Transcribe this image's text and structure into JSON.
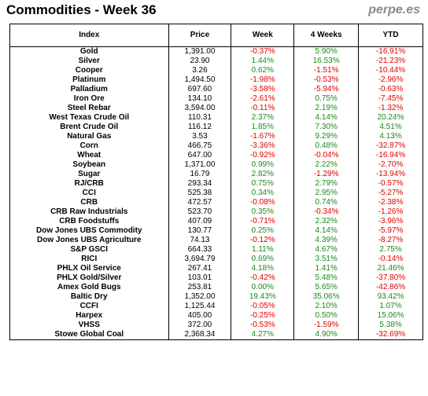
{
  "header": {
    "title": "Commodities - Week 36",
    "brand": "perpe.es"
  },
  "colors": {
    "positive": "#1c8a1c",
    "negative": "#e00000"
  },
  "table": {
    "columns": [
      "Index",
      "Price",
      "Week",
      "4 Weeks",
      "YTD"
    ],
    "rows": [
      {
        "name": "Gold",
        "price": "1,391.00",
        "week": "-0.37%",
        "weeks4": "5.90%",
        "ytd": "-16.91%"
      },
      {
        "name": "Silver",
        "price": "23.90",
        "week": "1.44%",
        "weeks4": "16.53%",
        "ytd": "-21.23%"
      },
      {
        "name": "Cooper",
        "price": "3.26",
        "week": "0.62%",
        "weeks4": "-1.51%",
        "ytd": "-10.44%"
      },
      {
        "name": "Platinum",
        "price": "1,494.50",
        "week": "-1.98%",
        "weeks4": "-0.53%",
        "ytd": "-2.96%"
      },
      {
        "name": "Palladium",
        "price": "697.60",
        "week": "-3.58%",
        "weeks4": "-5.94%",
        "ytd": "-0.63%"
      },
      {
        "name": "Iron Ore",
        "price": "134.10",
        "week": "-2.61%",
        "weeks4": "0.75%",
        "ytd": "-7.45%"
      },
      {
        "name": "Steel Rebar",
        "price": "3,594.00",
        "week": "-0.11%",
        "weeks4": "2.19%",
        "ytd": "-1.32%"
      },
      {
        "name": "West Texas Crude Oil",
        "price": "110.31",
        "week": "2.37%",
        "weeks4": "4.14%",
        "ytd": "20.24%"
      },
      {
        "name": "Brent Crude Oil",
        "price": "116.12",
        "week": "1.85%",
        "weeks4": "7.30%",
        "ytd": "4.51%"
      },
      {
        "name": "Natural Gas",
        "price": "3.53",
        "week": "-1.67%",
        "weeks4": "9.29%",
        "ytd": "4.13%"
      },
      {
        "name": "Corn",
        "price": "466.75",
        "week": "-3.36%",
        "weeks4": "0.48%",
        "ytd": "-32.87%"
      },
      {
        "name": "Wheat",
        "price": "647.00",
        "week": "-0.92%",
        "weeks4": "-0.04%",
        "ytd": "-16.94%"
      },
      {
        "name": "Soybean",
        "price": "1,371.00",
        "week": "0.99%",
        "weeks4": "2.22%",
        "ytd": "-2.70%"
      },
      {
        "name": "Sugar",
        "price": "16.79",
        "week": "2.82%",
        "weeks4": "-1.29%",
        "ytd": "-13.94%"
      },
      {
        "name": "RJ/CRB",
        "price": "293.34",
        "week": "0.75%",
        "weeks4": "2.79%",
        "ytd": "-0.57%"
      },
      {
        "name": "CCI",
        "price": "525.38",
        "week": "0.34%",
        "weeks4": "2.95%",
        "ytd": "-5.27%"
      },
      {
        "name": "CRB",
        "price": "472.57",
        "week": "-0.08%",
        "weeks4": "0.74%",
        "ytd": "-2.38%"
      },
      {
        "name": "CRB Raw Industrials",
        "price": "523.70",
        "week": "0.35%",
        "weeks4": "-0.34%",
        "ytd": "-1.26%"
      },
      {
        "name": "CRB Foodstuffs",
        "price": "407.09",
        "week": "-0.71%",
        "weeks4": "2.32%",
        "ytd": "-3.96%"
      },
      {
        "name": "Dow Jones UBS Commodity",
        "price": "130.77",
        "week": "0.25%",
        "weeks4": "4.14%",
        "ytd": "-5.97%"
      },
      {
        "name": "Dow Jones UBS Agriculture",
        "price": "74.13",
        "week": "-0.12%",
        "weeks4": "4.39%",
        "ytd": "-8.27%"
      },
      {
        "name": "S&P GSCI",
        "price": "664.33",
        "week": "1.11%",
        "weeks4": "4.67%",
        "ytd": "2.75%"
      },
      {
        "name": "RICI",
        "price": "3,694.79",
        "week": "0.69%",
        "weeks4": "3.51%",
        "ytd": "-0.14%"
      },
      {
        "name": "PHLX Oil Service",
        "price": "267.41",
        "week": "4.18%",
        "weeks4": "1.41%",
        "ytd": "21.46%"
      },
      {
        "name": "PHLX Gold/Silver",
        "price": "103.01",
        "week": "-0.42%",
        "weeks4": "5.48%",
        "ytd": "-37.80%"
      },
      {
        "name": "Amex Gold Bugs",
        "price": "253.81",
        "week": "0.00%",
        "weeks4": "5.65%",
        "ytd": "-42.86%"
      },
      {
        "name": "Baltic Dry",
        "price": "1,352.00",
        "week": "19.43%",
        "weeks4": "35.06%",
        "ytd": "93.42%"
      },
      {
        "name": "CCFI",
        "price": "1,125.44",
        "week": "-0.05%",
        "weeks4": "2.10%",
        "ytd": "1.07%"
      },
      {
        "name": "Harpex",
        "price": "405.00",
        "week": "-0.25%",
        "weeks4": "0.50%",
        "ytd": "15.06%"
      },
      {
        "name": "VHSS",
        "price": "372.00",
        "week": "-0.53%",
        "weeks4": "-1.59%",
        "ytd": "5.38%"
      },
      {
        "name": "Stowe Global Coal",
        "price": "2,368.34",
        "week": "4.27%",
        "weeks4": "4.90%",
        "ytd": "-32.69%"
      }
    ]
  }
}
